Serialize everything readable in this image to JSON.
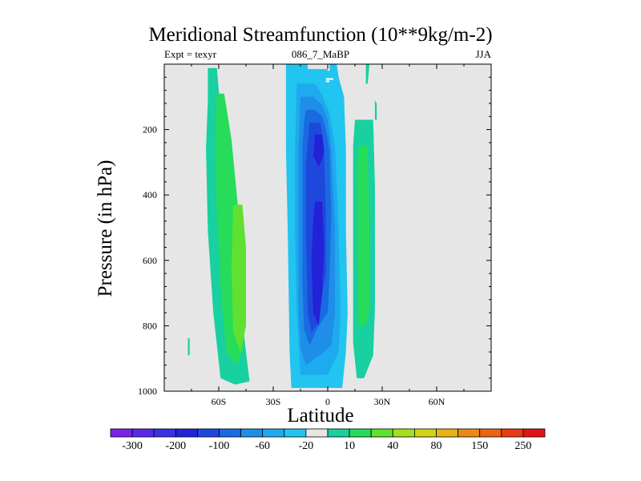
{
  "chart_data": {
    "type": "heatmap",
    "title": "Meridional Streamfunction (10**9kg/m-2)",
    "subtitle_left": "Expt = texyr",
    "subtitle_center": "086_7_MaBP",
    "subtitle_right": "JJA",
    "xlabel": "Latitude",
    "ylabel": "Pressure (in hPa)",
    "x_ticks": [
      {
        "value": -60,
        "label": "60S"
      },
      {
        "value": -30,
        "label": "30S"
      },
      {
        "value": 0,
        "label": "0"
      },
      {
        "value": 30,
        "label": "30N"
      },
      {
        "value": 60,
        "label": "60N"
      }
    ],
    "y_ticks": [
      {
        "value": 200,
        "label": "200"
      },
      {
        "value": 400,
        "label": "400"
      },
      {
        "value": 600,
        "label": "600"
      },
      {
        "value": 800,
        "label": "800"
      },
      {
        "value": 1000,
        "label": "1000"
      }
    ],
    "xlim": [
      -90,
      90
    ],
    "ylim": [
      0,
      1000
    ],
    "y_inverted": true,
    "background_color": "#e6e6e6",
    "colorbar": {
      "colors": [
        "#7a22e8",
        "#5a28ea",
        "#3c30e6",
        "#2222d8",
        "#1e48dc",
        "#1a6ae2",
        "#1e8ee8",
        "#1eaaee",
        "#22c4f0",
        "#e6e6e6",
        "#18d0a0",
        "#26dc5a",
        "#60e030",
        "#a0e020",
        "#d2d218",
        "#e6b414",
        "#e88a14",
        "#ea6414",
        "#e83a14",
        "#e01414"
      ],
      "tick_labels": [
        "-300",
        "-200",
        "-100",
        "-60",
        "-20",
        "10",
        "40",
        "80",
        "150",
        "250"
      ],
      "tick_boundaries": [
        1,
        3,
        5,
        7,
        9,
        11,
        13,
        15,
        17,
        19
      ]
    },
    "regions": [
      {
        "level": 10,
        "polygon": [
          [
            -66,
            12
          ],
          [
            -61,
            12
          ],
          [
            -58,
            210
          ],
          [
            -54,
            410
          ],
          [
            -50,
            640
          ],
          [
            -45,
            880
          ],
          [
            -43,
            970
          ],
          [
            -51,
            980
          ],
          [
            -59,
            960
          ],
          [
            -63,
            760
          ],
          [
            -66,
            510
          ],
          [
            -67,
            260
          ],
          [
            -66,
            110
          ]
        ]
      },
      {
        "level": 11,
        "polygon": [
          [
            -61,
            90
          ],
          [
            -57,
            90
          ],
          [
            -53,
            230
          ],
          [
            -49,
            460
          ],
          [
            -46,
            700
          ],
          [
            -46,
            860
          ],
          [
            -50,
            920
          ],
          [
            -56,
            880
          ],
          [
            -59,
            680
          ],
          [
            -61,
            460
          ],
          [
            -62,
            250
          ]
        ]
      },
      {
        "level": 12,
        "polygon": [
          [
            -52,
            430
          ],
          [
            -47,
            430
          ],
          [
            -45,
            560
          ],
          [
            -45,
            800
          ],
          [
            -48,
            880
          ],
          [
            -52,
            820
          ],
          [
            -53,
            620
          ]
        ]
      },
      {
        "level": 10,
        "polygon": [
          [
            -77,
            838
          ],
          [
            -76,
            838
          ],
          [
            -76,
            890
          ],
          [
            -77,
            890
          ]
        ]
      },
      {
        "level": 8,
        "polygon": [
          [
            -23,
            0
          ],
          [
            -11,
            0
          ],
          [
            -11,
            15
          ],
          [
            1,
            15
          ],
          [
            1,
            0
          ],
          [
            5,
            0
          ],
          [
            6,
            40
          ],
          [
            9,
            100
          ],
          [
            10,
            260
          ],
          [
            10,
            510
          ],
          [
            11,
            760
          ],
          [
            10,
            880
          ],
          [
            8,
            990
          ],
          [
            -20,
            990
          ],
          [
            -21,
            880
          ],
          [
            -22,
            510
          ],
          [
            -23,
            260
          ]
        ]
      },
      {
        "level": 7,
        "polygon": [
          [
            -17,
            60
          ],
          [
            -7,
            60
          ],
          [
            -3,
            95
          ],
          [
            1,
            150
          ],
          [
            4,
            255
          ],
          [
            6,
            510
          ],
          [
            7,
            760
          ],
          [
            6,
            880
          ],
          [
            0,
            950
          ],
          [
            -15,
            950
          ],
          [
            -17,
            760
          ],
          [
            -18,
            510
          ],
          [
            -18,
            260
          ]
        ]
      },
      {
        "level": 6,
        "polygon": [
          [
            -15,
            100
          ],
          [
            -8,
            100
          ],
          [
            -3,
            125
          ],
          [
            0,
            170
          ],
          [
            2,
            260
          ],
          [
            4,
            510
          ],
          [
            4,
            760
          ],
          [
            2,
            860
          ],
          [
            -2,
            880
          ],
          [
            -7,
            900
          ],
          [
            -12,
            920
          ],
          [
            -15,
            870
          ],
          [
            -16,
            760
          ],
          [
            -16,
            510
          ],
          [
            -16,
            260
          ]
        ]
      },
      {
        "level": 5,
        "polygon": [
          [
            -12,
            140
          ],
          [
            -7,
            140
          ],
          [
            -3,
            160
          ],
          [
            -1,
            200
          ],
          [
            1,
            260
          ],
          [
            2,
            460
          ],
          [
            1,
            640
          ],
          [
            0,
            760
          ],
          [
            -5,
            800
          ],
          [
            -10,
            860
          ],
          [
            -13,
            810
          ],
          [
            -14,
            660
          ],
          [
            -14,
            460
          ],
          [
            -14,
            260
          ],
          [
            -13,
            180
          ]
        ]
      },
      {
        "level": 4,
        "polygon": [
          [
            -10,
            180
          ],
          [
            -4,
            180
          ],
          [
            -2,
            260
          ],
          [
            -1,
            460
          ],
          [
            -1,
            640
          ],
          [
            -3,
            700
          ],
          [
            -5,
            790
          ],
          [
            -9,
            820
          ],
          [
            -11,
            760
          ],
          [
            -12,
            520
          ],
          [
            -12,
            300
          ]
        ]
      },
      {
        "level": 3,
        "polygon": [
          [
            -7,
            215
          ],
          [
            -3,
            215
          ],
          [
            -2,
            265
          ],
          [
            -3,
            290
          ],
          [
            -5,
            315
          ],
          [
            -8,
            280
          ]
        ]
      },
      {
        "level": 3,
        "polygon": [
          [
            -7,
            420
          ],
          [
            -3,
            420
          ],
          [
            -2,
            560
          ],
          [
            -3,
            700
          ],
          [
            -5,
            800
          ],
          [
            -8,
            760
          ],
          [
            -9,
            600
          ],
          [
            -8,
            480
          ]
        ]
      },
      {
        "level": 10,
        "polygon": [
          [
            15,
            170
          ],
          [
            25,
            170
          ],
          [
            26,
            370
          ],
          [
            26,
            750
          ],
          [
            25,
            890
          ],
          [
            20,
            960
          ],
          [
            16,
            960
          ],
          [
            14,
            850
          ],
          [
            14,
            510
          ],
          [
            14,
            250
          ]
        ]
      },
      {
        "level": 11,
        "polygon": [
          [
            17,
            250
          ],
          [
            22,
            250
          ],
          [
            23,
            500
          ],
          [
            23,
            750
          ],
          [
            21,
            800
          ],
          [
            17,
            800
          ],
          [
            16,
            560
          ],
          [
            16,
            320
          ]
        ]
      },
      {
        "level": 10,
        "polygon": [
          [
            21,
            0
          ],
          [
            23,
            0
          ],
          [
            22,
            60
          ],
          [
            21,
            60
          ]
        ]
      },
      {
        "level": 10,
        "polygon": [
          [
            26,
            110
          ],
          [
            27,
            120
          ],
          [
            27,
            170
          ],
          [
            26,
            170
          ]
        ]
      },
      {
        "level": 9,
        "polygon": [
          [
            36,
            285
          ],
          [
            38,
            290
          ],
          [
            39,
            420
          ],
          [
            40,
            660
          ],
          [
            39,
            860
          ],
          [
            34,
            880
          ],
          [
            32,
            750
          ],
          [
            33,
            520
          ],
          [
            34,
            380
          ]
        ]
      }
    ],
    "gaps": [
      {
        "polygon": [
          [
            0,
            13
          ],
          [
            1,
            13
          ],
          [
            1,
            20
          ],
          [
            0,
            20
          ]
        ]
      },
      {
        "polygon": [
          [
            -1,
            43
          ],
          [
            3,
            43
          ],
          [
            3,
            48
          ],
          [
            -1,
            48
          ]
        ]
      },
      {
        "polygon": [
          [
            -1,
            50
          ],
          [
            1,
            50
          ],
          [
            1,
            55
          ],
          [
            -1,
            55
          ]
        ]
      }
    ]
  }
}
